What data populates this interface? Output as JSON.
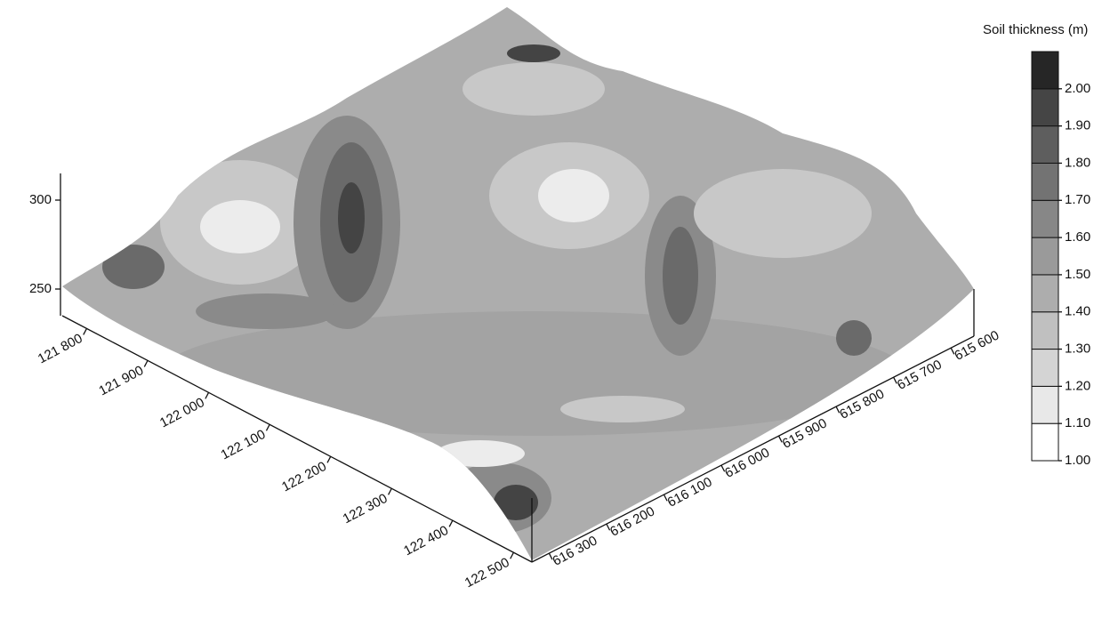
{
  "chart_data": {
    "type": "surface3d",
    "colorbar_title": "Soil thickness (m)",
    "clim": [
      1,
      2.1
    ],
    "colorbar_ticks": [
      {
        "value": 1,
        "label": "1.00"
      },
      {
        "value": 1.1,
        "label": "1.10"
      },
      {
        "value": 1.2,
        "label": "1.20"
      },
      {
        "value": 1.3,
        "label": "1.30"
      },
      {
        "value": 1.4,
        "label": "1.40"
      },
      {
        "value": 1.5,
        "label": "1.50"
      },
      {
        "value": 1.6,
        "label": "1.60"
      },
      {
        "value": 1.7,
        "label": "1.70"
      },
      {
        "value": 1.8,
        "label": "1.80"
      },
      {
        "value": 1.9,
        "label": "1.90"
      },
      {
        "value": 2,
        "label": "2.00"
      }
    ],
    "colorbar_colors": [
      "#ffffff",
      "#e8e8e8",
      "#d4d4d4",
      "#c0c0c0",
      "#adadad",
      "#9a9a9a",
      "#878787",
      "#737373",
      "#5e5e5e",
      "#454545",
      "#262626"
    ],
    "xlim": [
      121760,
      122530
    ],
    "xticks": [
      {
        "value": 121800,
        "label": "121 800"
      },
      {
        "value": 121900,
        "label": "121 900"
      },
      {
        "value": 122000,
        "label": "122 000"
      },
      {
        "value": 122100,
        "label": "122 100"
      },
      {
        "value": 122200,
        "label": "122 200"
      },
      {
        "value": 122300,
        "label": "122 300"
      },
      {
        "value": 122400,
        "label": "122 400"
      },
      {
        "value": 122500,
        "label": "122 500"
      }
    ],
    "ylim": [
      616330,
      615560
    ],
    "yticks": [
      {
        "value": 616300,
        "label": "616 300"
      },
      {
        "value": 616200,
        "label": "616 200"
      },
      {
        "value": 616100,
        "label": "616 100"
      },
      {
        "value": 616000,
        "label": "616 000"
      },
      {
        "value": 615900,
        "label": "615 900"
      },
      {
        "value": 615800,
        "label": "615 800"
      },
      {
        "value": 615700,
        "label": "615 700"
      },
      {
        "value": 615600,
        "label": "615 600"
      }
    ],
    "zlim": [
      235,
      315
    ],
    "zticks": [
      250,
      300
    ]
  }
}
